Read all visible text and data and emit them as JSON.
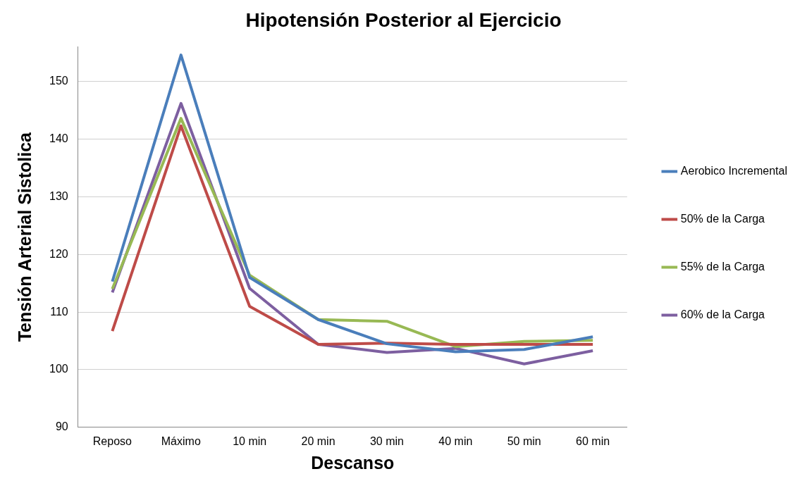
{
  "chart_data": {
    "type": "line",
    "title": "Hipotensión Posterior al Ejercicio",
    "xlabel": "Descanso",
    "ylabel": "Tensión Arterial Sistolica",
    "categories": [
      "Reposo",
      "Máximo",
      "10 min",
      "20 min",
      "30 min",
      "40 min",
      "50 min",
      "60 min"
    ],
    "series": [
      {
        "name": "Aerobico Incremental",
        "color": "#4a7ebb",
        "values": [
          115.3,
          154.6,
          116,
          108.7,
          104.5,
          103.1,
          103.5,
          105.7
        ]
      },
      {
        "name": "50% de la Carga",
        "color": "#be4b48",
        "values": [
          106.7,
          142.3,
          111,
          104.4,
          104.6,
          104.4,
          104.4,
          104.4
        ]
      },
      {
        "name": "55% de la Carga",
        "color": "#98b954",
        "values": [
          114,
          143.6,
          116.4,
          108.7,
          108.4,
          104,
          104.9,
          105.1
        ]
      },
      {
        "name": "60% de la Carga",
        "color": "#7d5fa0",
        "values": [
          113.4,
          146.2,
          114.1,
          104.4,
          103,
          103.7,
          101,
          103.3
        ]
      }
    ],
    "ylim": [
      90,
      156
    ],
    "yticks": [
      90,
      100,
      110,
      120,
      130,
      140,
      150
    ],
    "grid": "y",
    "legend": "right",
    "marker": "none",
    "line_style": "solid"
  }
}
